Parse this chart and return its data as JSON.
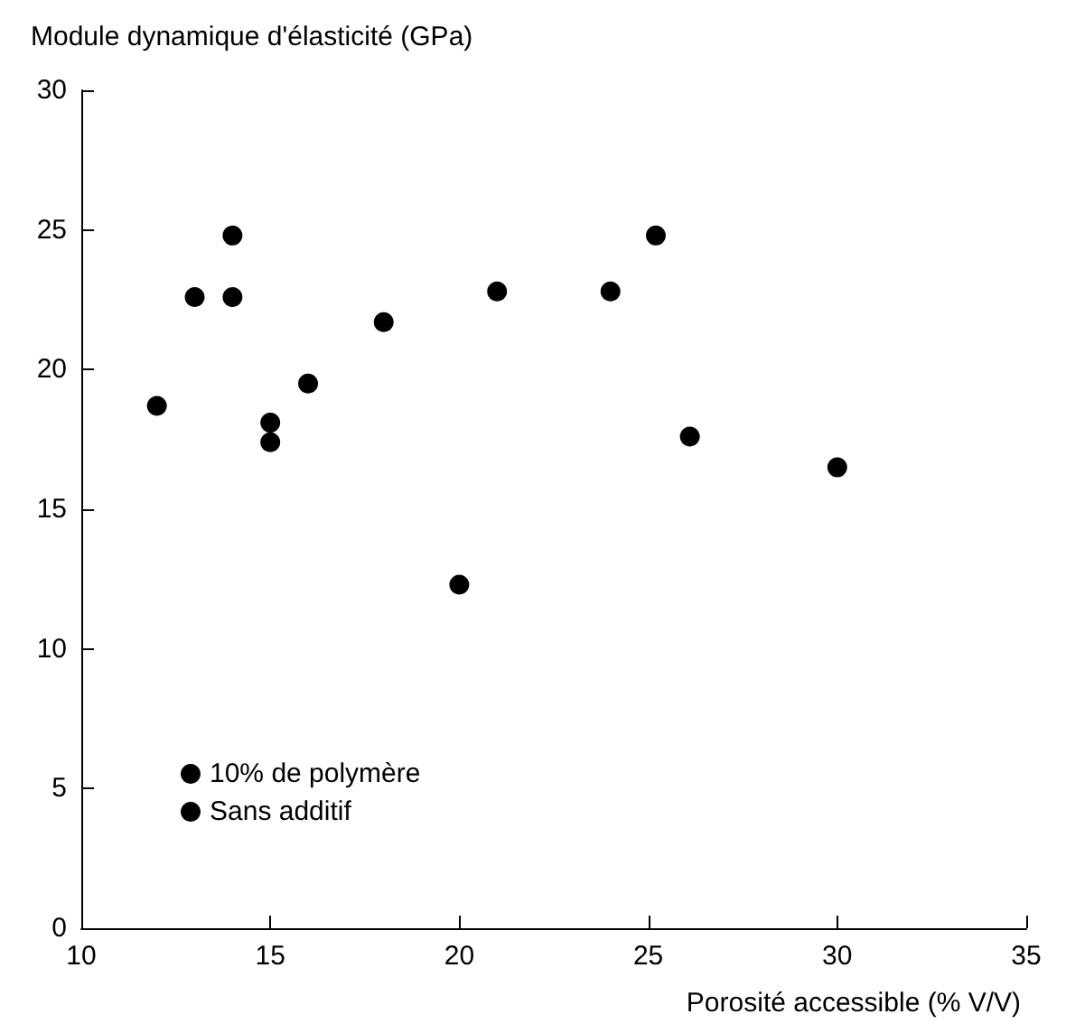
{
  "chart_data": {
    "type": "scatter",
    "xlabel": "Porosité accessible (% V/V)",
    "ylabel": "Module dynamique d'élasticité (GPa)",
    "xlim": [
      10,
      35
    ],
    "xticks": [
      10,
      15,
      20,
      25,
      30,
      35
    ],
    "ylim": [
      0,
      30
    ],
    "yticks": [
      0,
      5,
      10,
      15,
      20,
      25,
      30
    ],
    "grid": false,
    "legend": "bottom left",
    "marker": "circle",
    "series": [
      {
        "name": "10% de polymère",
        "color": "#000000",
        "x": [
          12,
          13,
          14,
          14,
          15,
          15,
          16,
          18,
          20,
          21,
          24,
          25.2,
          26.1,
          30
        ],
        "values": [
          18.7,
          22.6,
          22.6,
          24.8,
          18.1,
          17.4,
          19.5,
          21.7,
          12.3,
          22.8,
          22.8,
          24.8,
          17.6,
          16.5
        ]
      },
      {
        "name": "Sans additif",
        "color": "#000000"
      }
    ]
  }
}
